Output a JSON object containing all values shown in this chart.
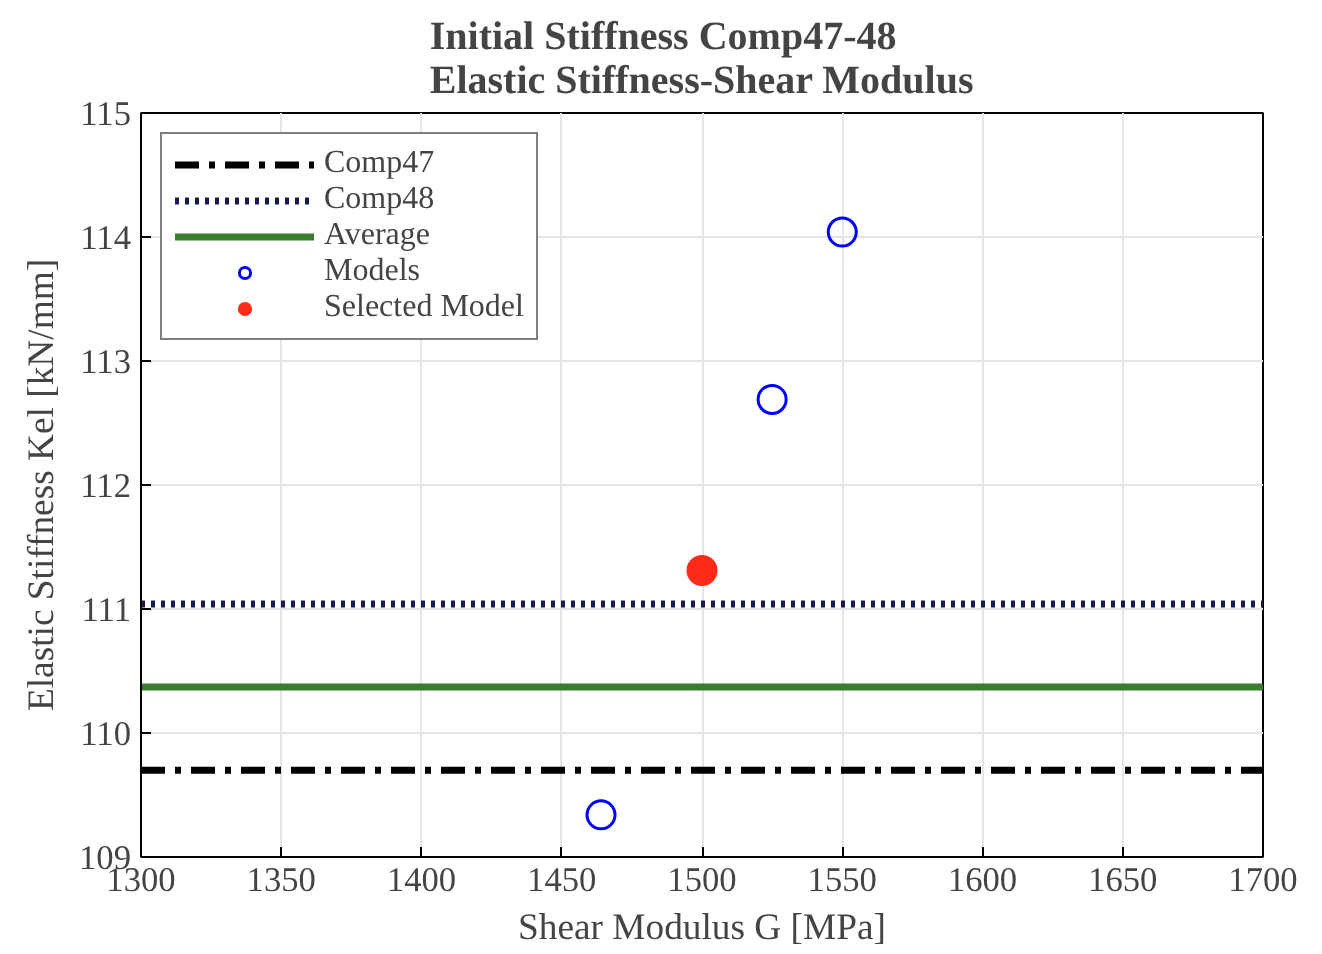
{
  "chart_data": {
    "type": "line",
    "title": "Initial Stiffness Comp47-48\nElastic Stiffness-Shear Modulus",
    "xlabel": "Shear Modulus G [MPa]",
    "ylabel": "Elastic Stiffness Kel [kN/mm]",
    "xlim": [
      1300,
      1700
    ],
    "ylim": [
      109,
      115
    ],
    "xticks": [
      1300,
      1350,
      1400,
      1450,
      1500,
      1550,
      1600,
      1650,
      1700
    ],
    "yticks": [
      109,
      110,
      111,
      112,
      113,
      114,
      115
    ],
    "grid": true,
    "legend": "top left",
    "series": [
      {
        "name": "Comp47",
        "color": "#000000",
        "line_style": "dashdot",
        "x": [
          1300,
          1700
        ],
        "values": [
          109.7,
          109.7
        ]
      },
      {
        "name": "Comp48",
        "color": "#1a1a4d",
        "line_style": "dotted",
        "x": [
          1300,
          1700
        ],
        "values": [
          111.04,
          111.04
        ]
      },
      {
        "name": "Average",
        "color": "#3a7d30",
        "line_style": "solid",
        "x": [
          1300,
          1700
        ],
        "values": [
          110.37,
          110.37
        ]
      },
      {
        "name": "Models",
        "type": "scatter",
        "color": "#0000ff",
        "marker": "circle",
        "x": [
          1464,
          1525,
          1550
        ],
        "values": [
          109.34,
          112.69,
          114.04
        ]
      },
      {
        "name": "Selected Model",
        "type": "scatter",
        "color": "#ff2a1a",
        "x": [
          1500
        ],
        "values": [
          111.31
        ]
      }
    ]
  }
}
